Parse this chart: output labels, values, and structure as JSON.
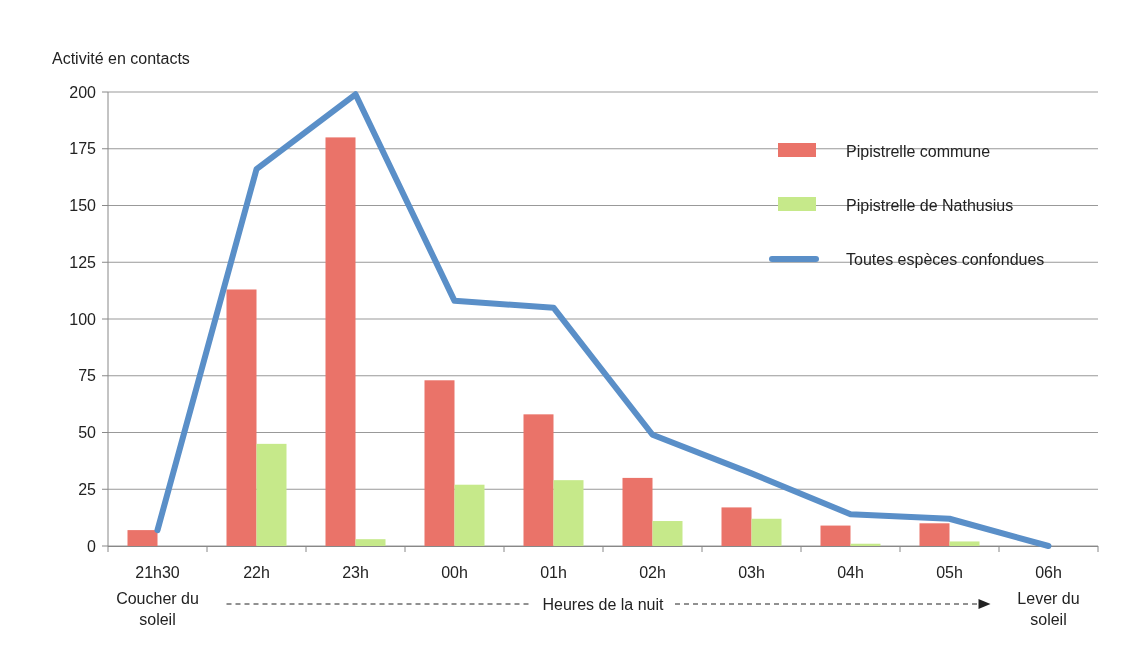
{
  "chart_data": {
    "type": "bar",
    "ylabel": "Activité en contacts",
    "xlabel": "Heures de la nuit",
    "categories": [
      "21h30",
      "22h",
      "23h",
      "00h",
      "01h",
      "02h",
      "03h",
      "04h",
      "05h",
      "06h"
    ],
    "series": [
      {
        "name": "Pipistrelle commune",
        "color": "#ea7369",
        "values": [
          7,
          113,
          180,
          73,
          58,
          30,
          17,
          9,
          10,
          null
        ]
      },
      {
        "name": "Pipistrelle de Nathusius",
        "color": "#c6e98a",
        "values": [
          null,
          45,
          3,
          27,
          29,
          11,
          12,
          1,
          2,
          null
        ]
      },
      {
        "name": "Toutes espèces confondues",
        "type": "line",
        "color": "#5a8fc8",
        "values": [
          7,
          166,
          199,
          108,
          105,
          49,
          32,
          14,
          12,
          0
        ]
      }
    ],
    "ylim": [
      0,
      200
    ],
    "yticks": [
      0,
      25,
      50,
      75,
      100,
      125,
      150,
      175,
      200
    ],
    "grid": "y",
    "legend": "top right",
    "marker": "none",
    "annotations": [
      "Coucher du soleil",
      "Lever du soleil"
    ]
  }
}
